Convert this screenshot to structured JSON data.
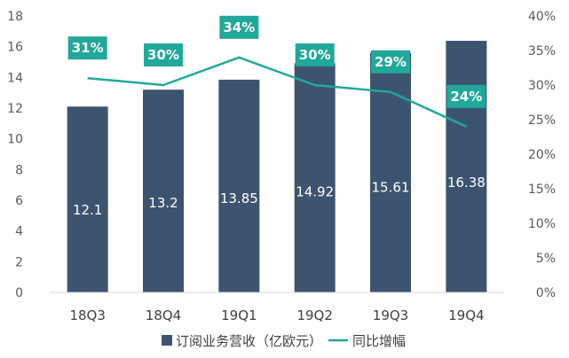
{
  "chart_data": {
    "type": "bar",
    "categories": [
      "18Q3",
      "18Q4",
      "19Q1",
      "19Q2",
      "19Q3",
      "19Q4"
    ],
    "series": [
      {
        "name": "订阅业务营收（亿欧元）",
        "type": "bar",
        "axis": "left",
        "values": [
          12.1,
          13.2,
          13.85,
          14.92,
          15.61,
          16.38
        ],
        "labels": [
          "12.1",
          "13.2",
          "13.85",
          "14.92",
          "15.61",
          "16.38"
        ],
        "color": "#3d5470"
      },
      {
        "name": "同比增幅",
        "type": "line",
        "axis": "right",
        "values": [
          31,
          30,
          34,
          30,
          29,
          24
        ],
        "labels": [
          "31%",
          "30%",
          "34%",
          "30%",
          "29%",
          "24%"
        ],
        "color": "#20a89a"
      }
    ],
    "y_left": {
      "ylim": [
        0,
        18
      ],
      "ticks": [
        "0",
        "2",
        "4",
        "6",
        "8",
        "10",
        "12",
        "14",
        "16",
        "18"
      ]
    },
    "y_right": {
      "ylim": [
        0,
        40
      ],
      "ticks": [
        "0%",
        "5%",
        "10%",
        "15%",
        "20%",
        "25%",
        "30%",
        "35%",
        "40%"
      ]
    },
    "grid": false,
    "legend_position": "bottom"
  }
}
